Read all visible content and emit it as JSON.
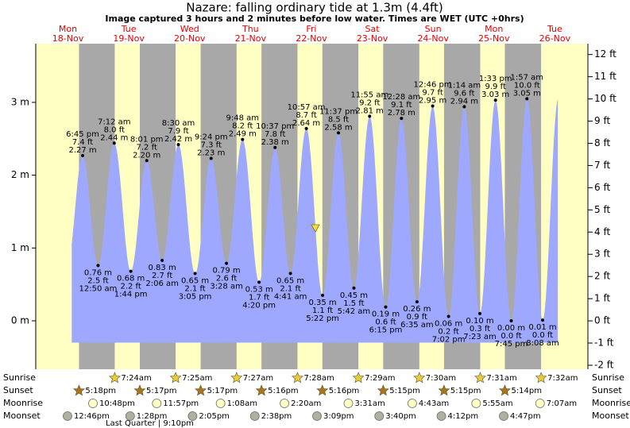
{
  "chart_data": {
    "type": "tide",
    "title": "Nazare: falling  ordinary tide at 1.3m (4.4ft)",
    "subtitle": "Image captured 3 hours and 2 minutes before low water. Times are WET (UTC +0hrs)",
    "days": [
      {
        "name": "Mon",
        "date": "18-Nov"
      },
      {
        "name": "Tue",
        "date": "19-Nov"
      },
      {
        "name": "Wed",
        "date": "20-Nov"
      },
      {
        "name": "Thu",
        "date": "21-Nov"
      },
      {
        "name": "Fri",
        "date": "22-Nov"
      },
      {
        "name": "Sat",
        "date": "23-Nov"
      },
      {
        "name": "Sun",
        "date": "24-Nov"
      },
      {
        "name": "Mon",
        "date": "25-Nov"
      },
      {
        "name": "Tue",
        "date": "26-Nov"
      }
    ],
    "ylim": [
      -0.665,
      3.806
    ],
    "yticks": [
      {
        "value": 0,
        "label": "0 m"
      },
      {
        "value": 1,
        "label": "1 m"
      },
      {
        "value": 2,
        "label": "2 m"
      },
      {
        "value": 3,
        "label": "3 m"
      }
    ],
    "y2lim": [
      -2.18,
      12.49
    ],
    "y2ticks": [
      {
        "value": -2,
        "label": "-2 ft"
      },
      {
        "value": -1,
        "label": "-1 ft"
      },
      {
        "value": 0,
        "label": "0 ft"
      },
      {
        "value": 1,
        "label": "1 ft"
      },
      {
        "value": 2,
        "label": "2 ft"
      },
      {
        "value": 3,
        "label": "3 ft"
      },
      {
        "value": 4,
        "label": "4 ft"
      },
      {
        "value": 5,
        "label": "5 ft"
      },
      {
        "value": 6,
        "label": "6 ft"
      },
      {
        "value": 7,
        "label": "7 ft"
      },
      {
        "value": 8,
        "label": "8 ft"
      },
      {
        "value": 9,
        "label": "9 ft"
      },
      {
        "value": 10,
        "label": "10 ft"
      },
      {
        "value": 11,
        "label": "11 ft"
      },
      {
        "value": 12,
        "label": "12 ft"
      }
    ],
    "color": "#9ea8ff",
    "tides": {
      "times": [
        "6:45 pm",
        "12:50 am",
        "7:12 am",
        "1:44 pm",
        "8:01 pm",
        "2:06 am",
        "8:30 am",
        "3:05 pm",
        "9:24 pm",
        "3:28 am",
        "9:48 am",
        "4:20 pm",
        "10:37 pm",
        "4:41 am",
        "10:57 am",
        "5:22 pm",
        "11:37 pm",
        "5:42 am",
        "11:55 am",
        "6:15 pm",
        "12:28 am",
        "6:35 am",
        "12:46 pm",
        "7:02 pm",
        "1:14 am",
        "7:23 am",
        "1:33 pm",
        "7:45 pm",
        "1:57 am",
        "8:08 am"
      ],
      "values": [
        2.27,
        0.76,
        2.44,
        0.68,
        2.2,
        0.83,
        2.42,
        0.65,
        2.23,
        0.79,
        2.49,
        0.53,
        2.38,
        0.65,
        2.64,
        0.35,
        2.58,
        0.45,
        2.81,
        0.19,
        2.78,
        0.26,
        2.95,
        0.06,
        2.94,
        0.1,
        3.03,
        0.0,
        3.05,
        0.01
      ],
      "value_labels": [
        "2.27 m",
        "0.76 m",
        "2.44 m",
        "0.68 m",
        "2.20 m",
        "0.83 m",
        "2.42 m",
        "0.65 m",
        "2.23 m",
        "0.79 m",
        "2.49 m",
        "0.53 m",
        "2.38 m",
        "0.65 m",
        "2.64 m",
        "0.35 m",
        "2.58 m",
        "0.45 m",
        "2.81 m",
        "0.19 m",
        "2.78 m",
        "0.26 m",
        "2.95 m",
        "0.06 m",
        "2.94 m",
        "0.10 m",
        "3.03 m",
        "0.00 m",
        "3.05 m",
        "0.01 m"
      ],
      "feet_labels": [
        "7.4 ft",
        "2.5 ft",
        "8.0 ft",
        "2.2 ft",
        "7.2 ft",
        "2.7 ft",
        "7.9 ft",
        "2.1 ft",
        "7.3 ft",
        "2.6 ft",
        "8.2 ft",
        "1.7 ft",
        "7.8 ft",
        "2.1 ft",
        "8.7 ft",
        "1.1 ft",
        "8.5 ft",
        "1.5 ft",
        "9.2 ft",
        "0.6 ft",
        "9.1 ft",
        "0.9 ft",
        "9.7 ft",
        "0.2 ft",
        "9.6 ft",
        "0.3 ft",
        "9.9 ft",
        "0.0 ft",
        "10.0 ft",
        "0.0 ft"
      ]
    },
    "rows": [
      {
        "name": "Sunrise",
        "times": [
          null,
          "7:24am",
          "7:25am",
          "7:27am",
          "7:28am",
          "7:29am",
          "7:30am",
          "7:31am",
          "7:32am"
        ]
      },
      {
        "name": "Sunset",
        "times": [
          "5:18pm",
          "5:17pm",
          "5:17pm",
          "5:16pm",
          "5:16pm",
          "5:15pm",
          "5:15pm",
          "5:14pm",
          null
        ]
      },
      {
        "name": "Moonrise",
        "times": [
          "10:48pm",
          "11:57pm",
          null,
          "1:08am",
          "2:20am",
          "3:31am",
          "4:43am",
          "5:55am",
          "7:07am"
        ]
      },
      {
        "name": "Moonset",
        "times": [
          "12:46pm",
          "1:28pm",
          "2:05pm",
          "2:38pm",
          "3:09pm",
          "3:40pm",
          "4:12pm",
          "4:47pm",
          null
        ]
      }
    ],
    "moon_phase": "Last Quarter | 9:10pm"
  }
}
